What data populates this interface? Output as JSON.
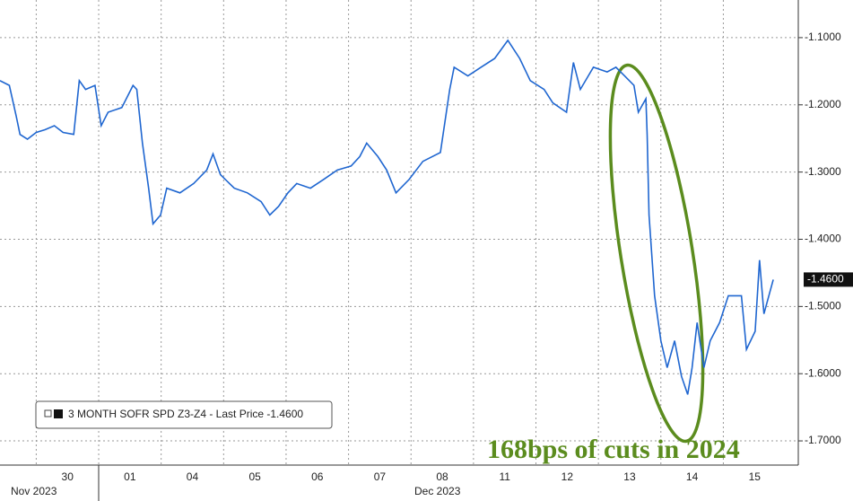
{
  "chart_data": {
    "type": "line",
    "x": [
      -0.58,
      -0.43,
      -0.32,
      -0.26,
      -0.14,
      0,
      0.14,
      0.29,
      0.43,
      0.6,
      0.69,
      0.79,
      0.94,
      1.04,
      1.15,
      1.37,
      1.55,
      1.61,
      1.7,
      1.8,
      1.87,
      1.99,
      2.09,
      2.3,
      2.52,
      2.73,
      2.83,
      2.95,
      3.17,
      3.38,
      3.6,
      3.74,
      3.88,
      4.03,
      4.17,
      4.39,
      4.6,
      4.82,
      5.04,
      5.18,
      5.29,
      5.47,
      5.61,
      5.76,
      5.97,
      6.19,
      6.47,
      6.62,
      6.69,
      6.91,
      7.12,
      7.34,
      7.55,
      7.74,
      7.91,
      8.13,
      8.27,
      8.49,
      8.6,
      8.71,
      8.92,
      9.14,
      9.28,
      9.42,
      9.57,
      9.64,
      9.76,
      9.78,
      9.81,
      9.9,
      10.0,
      10.1,
      10.22,
      10.33,
      10.43,
      10.5,
      10.58,
      10.69,
      10.79,
      10.94,
      11.08,
      11.29,
      11.37,
      11.51,
      11.58,
      11.65,
      11.8
    ],
    "series": [
      {
        "name": "3 MONTH SOFR SPD Z3-Z4 - Last Price -1.4600",
        "color": "#1f66d0",
        "values": [
          -1.164,
          -1.171,
          -1.217,
          -1.244,
          -1.251,
          -1.241,
          -1.237,
          -1.231,
          -1.241,
          -1.244,
          -1.164,
          -1.177,
          -1.171,
          -1.231,
          -1.211,
          -1.204,
          -1.171,
          -1.177,
          -1.257,
          -1.324,
          -1.377,
          -1.364,
          -1.324,
          -1.331,
          -1.317,
          -1.297,
          -1.273,
          -1.304,
          -1.324,
          -1.331,
          -1.344,
          -1.364,
          -1.351,
          -1.331,
          -1.317,
          -1.324,
          -1.311,
          -1.297,
          -1.291,
          -1.277,
          -1.257,
          -1.277,
          -1.297,
          -1.331,
          -1.311,
          -1.284,
          -1.271,
          -1.177,
          -1.144,
          -1.157,
          -1.144,
          -1.131,
          -1.104,
          -1.131,
          -1.164,
          -1.177,
          -1.197,
          -1.211,
          -1.137,
          -1.177,
          -1.144,
          -1.151,
          -1.144,
          -1.157,
          -1.171,
          -1.211,
          -1.191,
          -1.244,
          -1.364,
          -1.484,
          -1.551,
          -1.591,
          -1.551,
          -1.604,
          -1.631,
          -1.591,
          -1.524,
          -1.591,
          -1.551,
          -1.524,
          -1.484,
          -1.484,
          -1.564,
          -1.537,
          -1.431,
          -1.511,
          -1.46
        ]
      }
    ],
    "last_price_label": "-1.4600",
    "annotation": "168bps of cuts in 2024",
    "x_groups": [
      "Nov 2023",
      "Dec 2023"
    ],
    "xlim": [
      -0.58,
      12.2
    ],
    "xticks": [
      {
        "value": 0.5,
        "label": "30"
      },
      {
        "value": 1.5,
        "label": "01"
      },
      {
        "value": 2.5,
        "label": "04"
      },
      {
        "value": 3.5,
        "label": "05"
      },
      {
        "value": 4.5,
        "label": "06"
      },
      {
        "value": 5.5,
        "label": "07"
      },
      {
        "value": 6.5,
        "label": "08"
      },
      {
        "value": 7.5,
        "label": "11"
      },
      {
        "value": 8.5,
        "label": "12"
      },
      {
        "value": 9.5,
        "label": "13"
      },
      {
        "value": 10.5,
        "label": "14"
      },
      {
        "value": 11.5,
        "label": "15"
      }
    ],
    "ylim": [
      -1.736,
      -1.044
    ],
    "yticks": [
      {
        "value": -1.1,
        "label": "-1.1000"
      },
      {
        "value": -1.2,
        "label": "-1.2000"
      },
      {
        "value": -1.3,
        "label": "-1.3000"
      },
      {
        "value": -1.4,
        "label": "-1.4000"
      },
      {
        "value": -1.5,
        "label": "-1.5000"
      },
      {
        "value": -1.6,
        "label": "-1.6000"
      },
      {
        "value": -1.7,
        "label": "-1.7000"
      }
    ],
    "grid": true
  }
}
